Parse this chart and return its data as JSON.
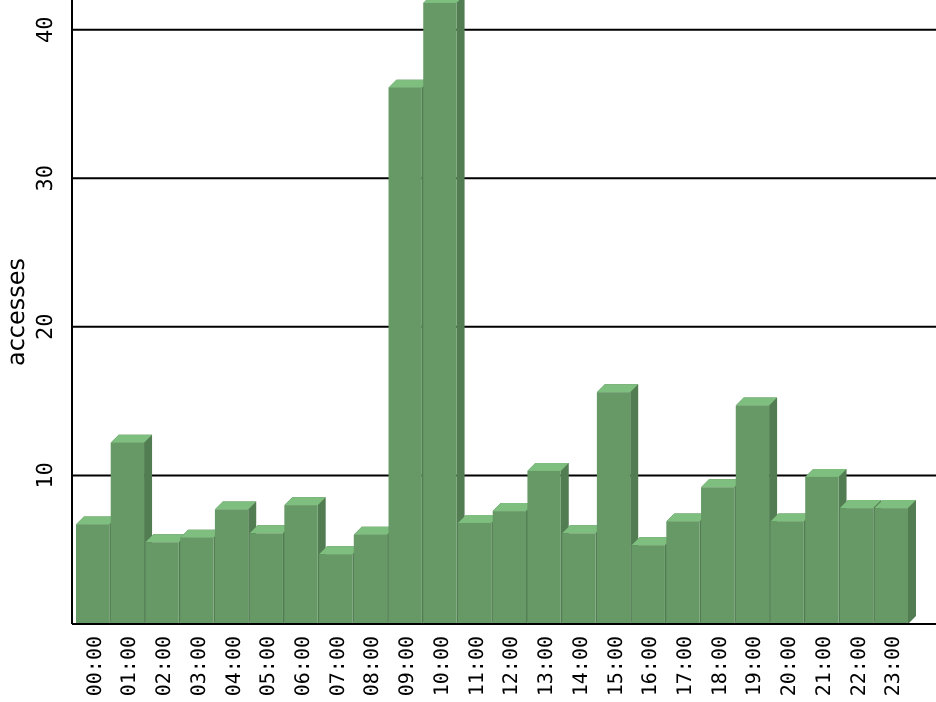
{
  "chart_data": {
    "type": "bar",
    "ylabel": "accesses",
    "categories": [
      "00:00",
      "01:00",
      "02:00",
      "03:00",
      "04:00",
      "05:00",
      "06:00",
      "07:00",
      "08:00",
      "09:00",
      "10:00",
      "11:00",
      "12:00",
      "13:00",
      "14:00",
      "15:00",
      "16:00",
      "17:00",
      "18:00",
      "19:00",
      "20:00",
      "21:00",
      "22:00",
      "23:00"
    ],
    "values": [
      6.7,
      12.2,
      5.5,
      5.8,
      7.7,
      6.1,
      8.0,
      4.7,
      6.0,
      36.1,
      41.8,
      6.8,
      7.6,
      10.3,
      6.1,
      15.6,
      5.3,
      6.9,
      9.2,
      14.7,
      6.9,
      9.9,
      7.8,
      7.8
    ],
    "color": "#669966",
    "ylim": [
      0,
      42
    ],
    "yticks": [
      10,
      20,
      30,
      40
    ],
    "grid": "y"
  }
}
